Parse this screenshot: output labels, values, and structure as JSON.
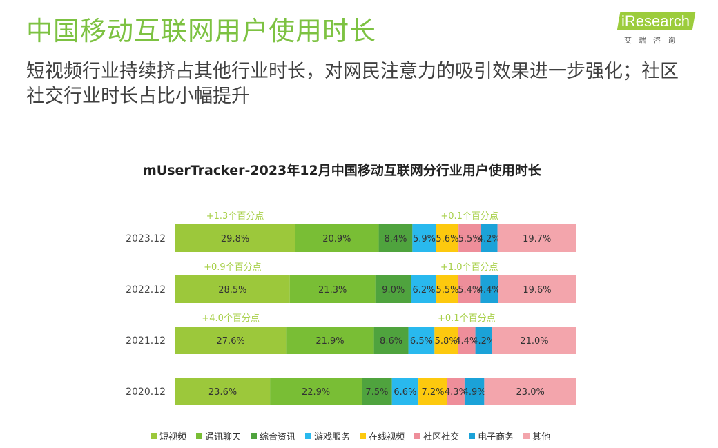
{
  "header": {
    "title": "中国移动互联网用户使用时长",
    "subtitle": "短视频行业持续挤占其他行业时长，对网民注意力的吸引效果进一步强化；社区社交行业时长占比小幅提升"
  },
  "logo": {
    "main": "iResearch",
    "sub": "艾瑞咨询"
  },
  "chart_data": {
    "type": "bar",
    "orientation": "horizontal-stacked-percent",
    "title": "mUserTracker-2023年12月中国移动互联网分行业用户使用时长",
    "categories": [
      "2023.12",
      "2022.12",
      "2021.12",
      "2020.12"
    ],
    "series": [
      {
        "name": "短视频",
        "color": "#9cc83b",
        "values": [
          29.8,
          28.5,
          27.6,
          23.6
        ]
      },
      {
        "name": "通讯聊天",
        "color": "#79be35",
        "values": [
          20.9,
          21.3,
          21.9,
          22.9
        ]
      },
      {
        "name": "综合资讯",
        "color": "#4fa33e",
        "values": [
          8.4,
          9.0,
          8.6,
          7.5
        ]
      },
      {
        "name": "游戏服务",
        "color": "#29b9ee",
        "values": [
          5.9,
          6.2,
          6.5,
          6.6
        ]
      },
      {
        "name": "在线视频",
        "color": "#fdc90e",
        "values": [
          5.6,
          5.5,
          5.8,
          7.2
        ]
      },
      {
        "name": "社区社交",
        "color": "#ee8e9a",
        "values": [
          5.5,
          5.4,
          4.4,
          4.3
        ]
      },
      {
        "name": "电子商务",
        "color": "#1ba2d8",
        "values": [
          4.2,
          4.4,
          4.2,
          4.9
        ]
      },
      {
        "name": "其他",
        "color": "#f3a5ac",
        "values": [
          19.7,
          19.6,
          21.0,
          23.0
        ]
      }
    ],
    "value_labels": [
      [
        "29.8%",
        "20.9%",
        "8.4%",
        "5.9%",
        "5.6%",
        "5.5%",
        "4.2%",
        "19.7%"
      ],
      [
        "28.5%",
        "21.3%",
        "9.0%",
        "6.2%",
        "5.5%",
        "5.4%",
        "4.4%",
        "19.6%"
      ],
      [
        "27.6%",
        "21.9%",
        "8.6%",
        "6.5%",
        "5.8%",
        "4.4%",
        "4.2%",
        "21.0%"
      ],
      [
        "23.6%",
        "22.9%",
        "7.5%",
        "6.6%",
        "7.2%",
        "4.3%",
        "4.9%",
        "23.0%"
      ]
    ],
    "annotations": [
      {
        "row": 0,
        "series": "短视频",
        "text": "+1.3个百分点"
      },
      {
        "row": 0,
        "series": "社区社交",
        "text": "+0.1个百分点"
      },
      {
        "row": 1,
        "series": "短视频",
        "text": "+0.9个百分点"
      },
      {
        "row": 1,
        "series": "社区社交",
        "text": "+1.0个百分点"
      },
      {
        "row": 2,
        "series": "短视频",
        "text": "+4.0个百分点"
      },
      {
        "row": 2,
        "series": "社区社交",
        "text": "+0.1个百分点"
      }
    ],
    "annotation_color": "#a8d04a",
    "xlim": [
      0,
      100
    ],
    "legend_position": "bottom"
  }
}
